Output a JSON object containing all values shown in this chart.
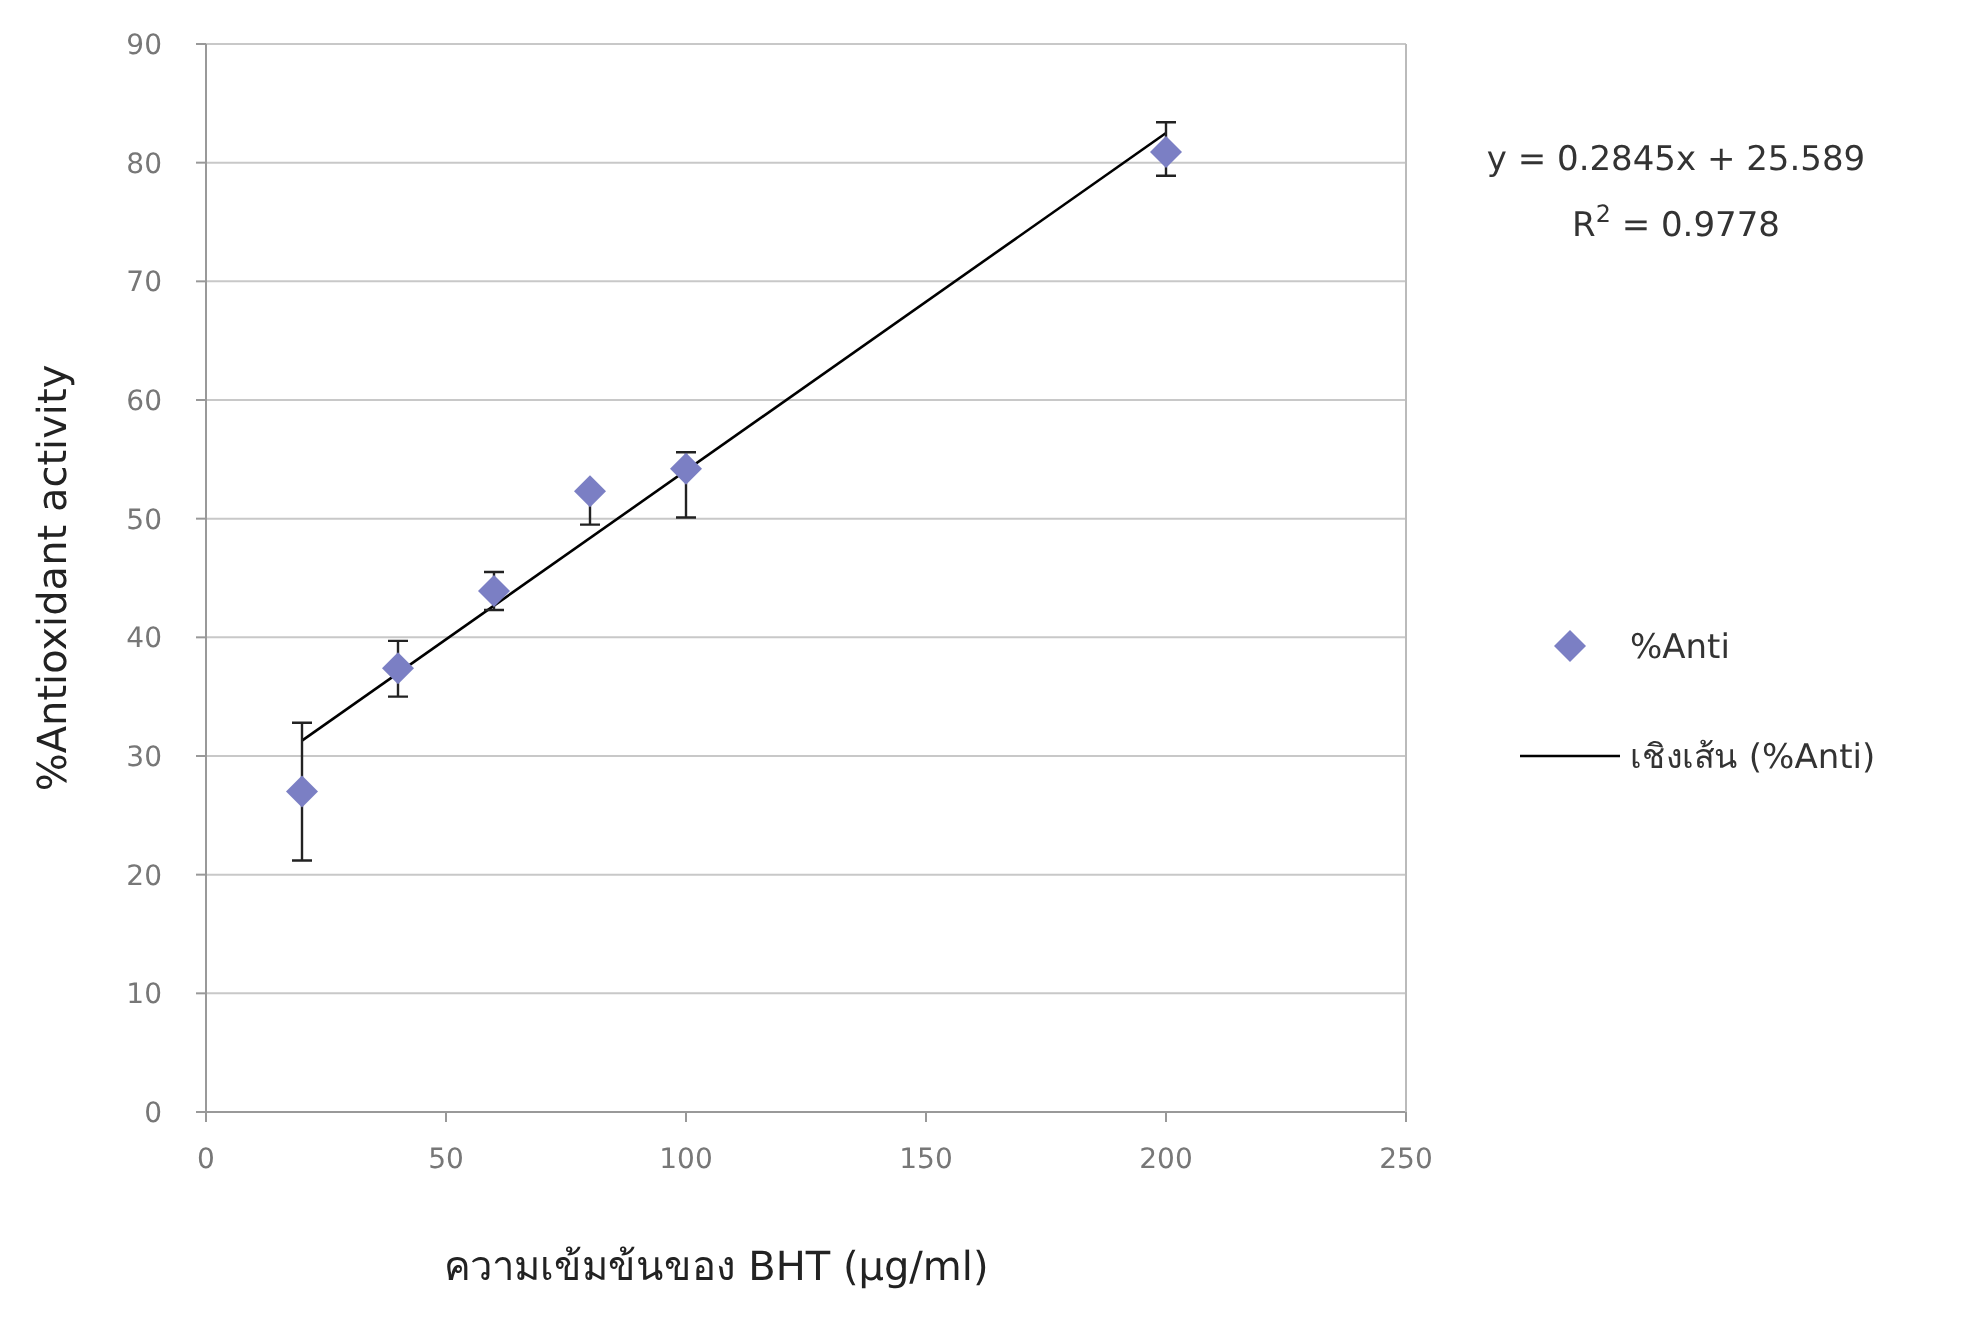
{
  "chart_data": {
    "type": "scatter",
    "xlabel": "ความเข้มข้นของ BHT (µg/ml)",
    "ylabel": "%Antioxidant activity",
    "xlim": [
      0,
      250
    ],
    "xticks": [
      0,
      50,
      100,
      150,
      200,
      250
    ],
    "ylim": [
      0,
      90
    ],
    "yticks": [
      0,
      10,
      20,
      30,
      40,
      50,
      60,
      70,
      80,
      90
    ],
    "grid": "y",
    "legend": "right",
    "annotations": [
      "y = 0.2845x + 25.589",
      "R$^{2}$ = 0.9778"
    ],
    "series": [
      {
        "name": "%Anti",
        "marker": "diamond",
        "color": "#7b7fc4",
        "x": [
          20,
          40,
          60,
          80,
          100,
          200
        ],
        "values": [
          27.0,
          37.4,
          43.9,
          52.3,
          54.2,
          80.9
        ],
        "errors": [
          [
            21.2,
            32.8
          ],
          [
            35.0,
            39.7
          ],
          [
            42.3,
            45.5
          ],
          [
            49.5,
            52.3
          ],
          [
            50.1,
            55.6
          ],
          [
            78.9,
            83.4
          ]
        ]
      },
      {
        "name": "เชิงเส้น (%Anti)",
        "type": "line",
        "marker": "none",
        "line_style": "solid",
        "color": "#000000",
        "x": [
          20,
          200
        ],
        "values": [
          31.3,
          82.5
        ]
      }
    ]
  }
}
